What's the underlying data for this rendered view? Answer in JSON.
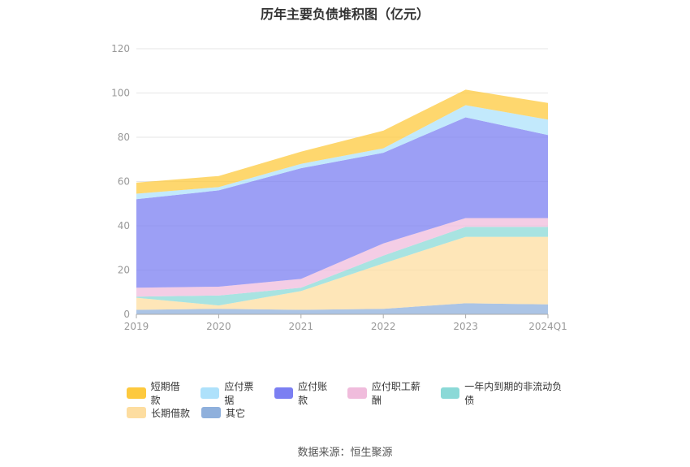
{
  "chart_data": {
    "type": "area",
    "title": "历年主要负债堆积图（亿元）",
    "source": "数据来源：恒生聚源",
    "categories": [
      "2019",
      "2020",
      "2021",
      "2022",
      "2023",
      "2024Q1"
    ],
    "ylim": [
      0,
      120
    ],
    "yticks": [
      0,
      20,
      40,
      60,
      80,
      100,
      120
    ],
    "grid": true,
    "stacked": true,
    "legend_position": "bottom",
    "series": [
      {
        "name": "其它",
        "values": [
          2.0,
          2.5,
          2.0,
          2.5,
          5.0,
          4.5
        ],
        "color": "#8fb0dc"
      },
      {
        "name": "长期借款",
        "values": [
          5.5,
          1.5,
          8.5,
          20.5,
          30.0,
          30.5
        ],
        "color": "#fddda0"
      },
      {
        "name": "一年内到期的非流动负债",
        "values": [
          0.5,
          4.5,
          1.5,
          3.5,
          4.5,
          4.5
        ],
        "color": "#8bd9d7"
      },
      {
        "name": "应付职工薪酬",
        "values": [
          4.0,
          4.0,
          4.0,
          5.5,
          4.0,
          4.0
        ],
        "color": "#f0bcdc"
      },
      {
        "name": "应付账款",
        "values": [
          40.0,
          43.5,
          50.0,
          41.0,
          45.5,
          37.5
        ],
        "color": "#7b7ff2"
      },
      {
        "name": "应付票据",
        "values": [
          2.5,
          1.5,
          2.0,
          2.0,
          5.5,
          7.0
        ],
        "color": "#aee1fb"
      },
      {
        "name": "短期借款",
        "values": [
          5.0,
          5.0,
          5.5,
          8.0,
          7.0,
          7.5
        ],
        "color": "#fdc93e"
      }
    ]
  },
  "legend_rows": [
    [
      "短期借款",
      "应付票据",
      "应付账款",
      "应付职工薪酬",
      "一年内到期的非流动负债"
    ],
    [
      "长期借款",
      "其它"
    ]
  ]
}
